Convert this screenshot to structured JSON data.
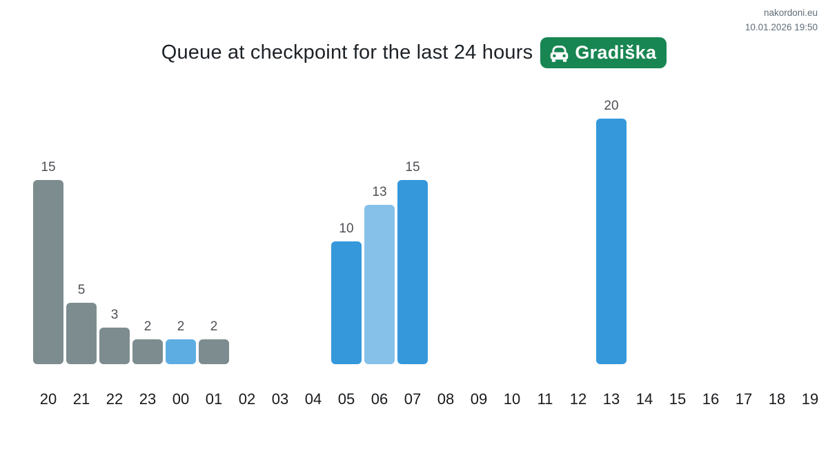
{
  "meta": {
    "site_label": "nakordoni.eu",
    "timestamp": "10.01.2026 19:50"
  },
  "header": {
    "title": "Queue at checkpoint for the last 24 hours",
    "badge": {
      "label": "Gradiška",
      "icon": "car-front-icon",
      "background": "#188652",
      "text_color": "#ffffff"
    }
  },
  "chart_data": {
    "type": "bar",
    "title": "Queue at checkpoint for the last 24 hours",
    "xlabel": "",
    "ylabel": "",
    "categories": [
      "20",
      "21",
      "22",
      "23",
      "00",
      "01",
      "02",
      "03",
      "04",
      "05",
      "06",
      "07",
      "08",
      "09",
      "10",
      "11",
      "12",
      "13",
      "14",
      "15",
      "16",
      "17",
      "18",
      "19"
    ],
    "values": [
      15,
      5,
      3,
      2,
      2,
      2,
      0,
      0,
      0,
      10,
      13,
      15,
      0,
      0,
      0,
      0,
      0,
      20,
      0,
      0,
      0,
      0,
      0,
      0
    ],
    "bar_colors": [
      "#7d8c8f",
      "#7d8c8f",
      "#7d8c8f",
      "#7d8c8f",
      "#5dade2",
      "#7d8c8f",
      null,
      null,
      null,
      "#3498db",
      "#85c1e9",
      "#3498db",
      null,
      null,
      null,
      null,
      null,
      "#3498db",
      null,
      null,
      null,
      null,
      null,
      null
    ],
    "palette": {
      "gray": "#7d8c8f",
      "blue": "#3498db",
      "medium_blue": "#5dade2",
      "light_blue": "#85c1e9"
    },
    "ylim": [
      0,
      20
    ],
    "grid": false,
    "legend": "none",
    "value_labels": true
  }
}
